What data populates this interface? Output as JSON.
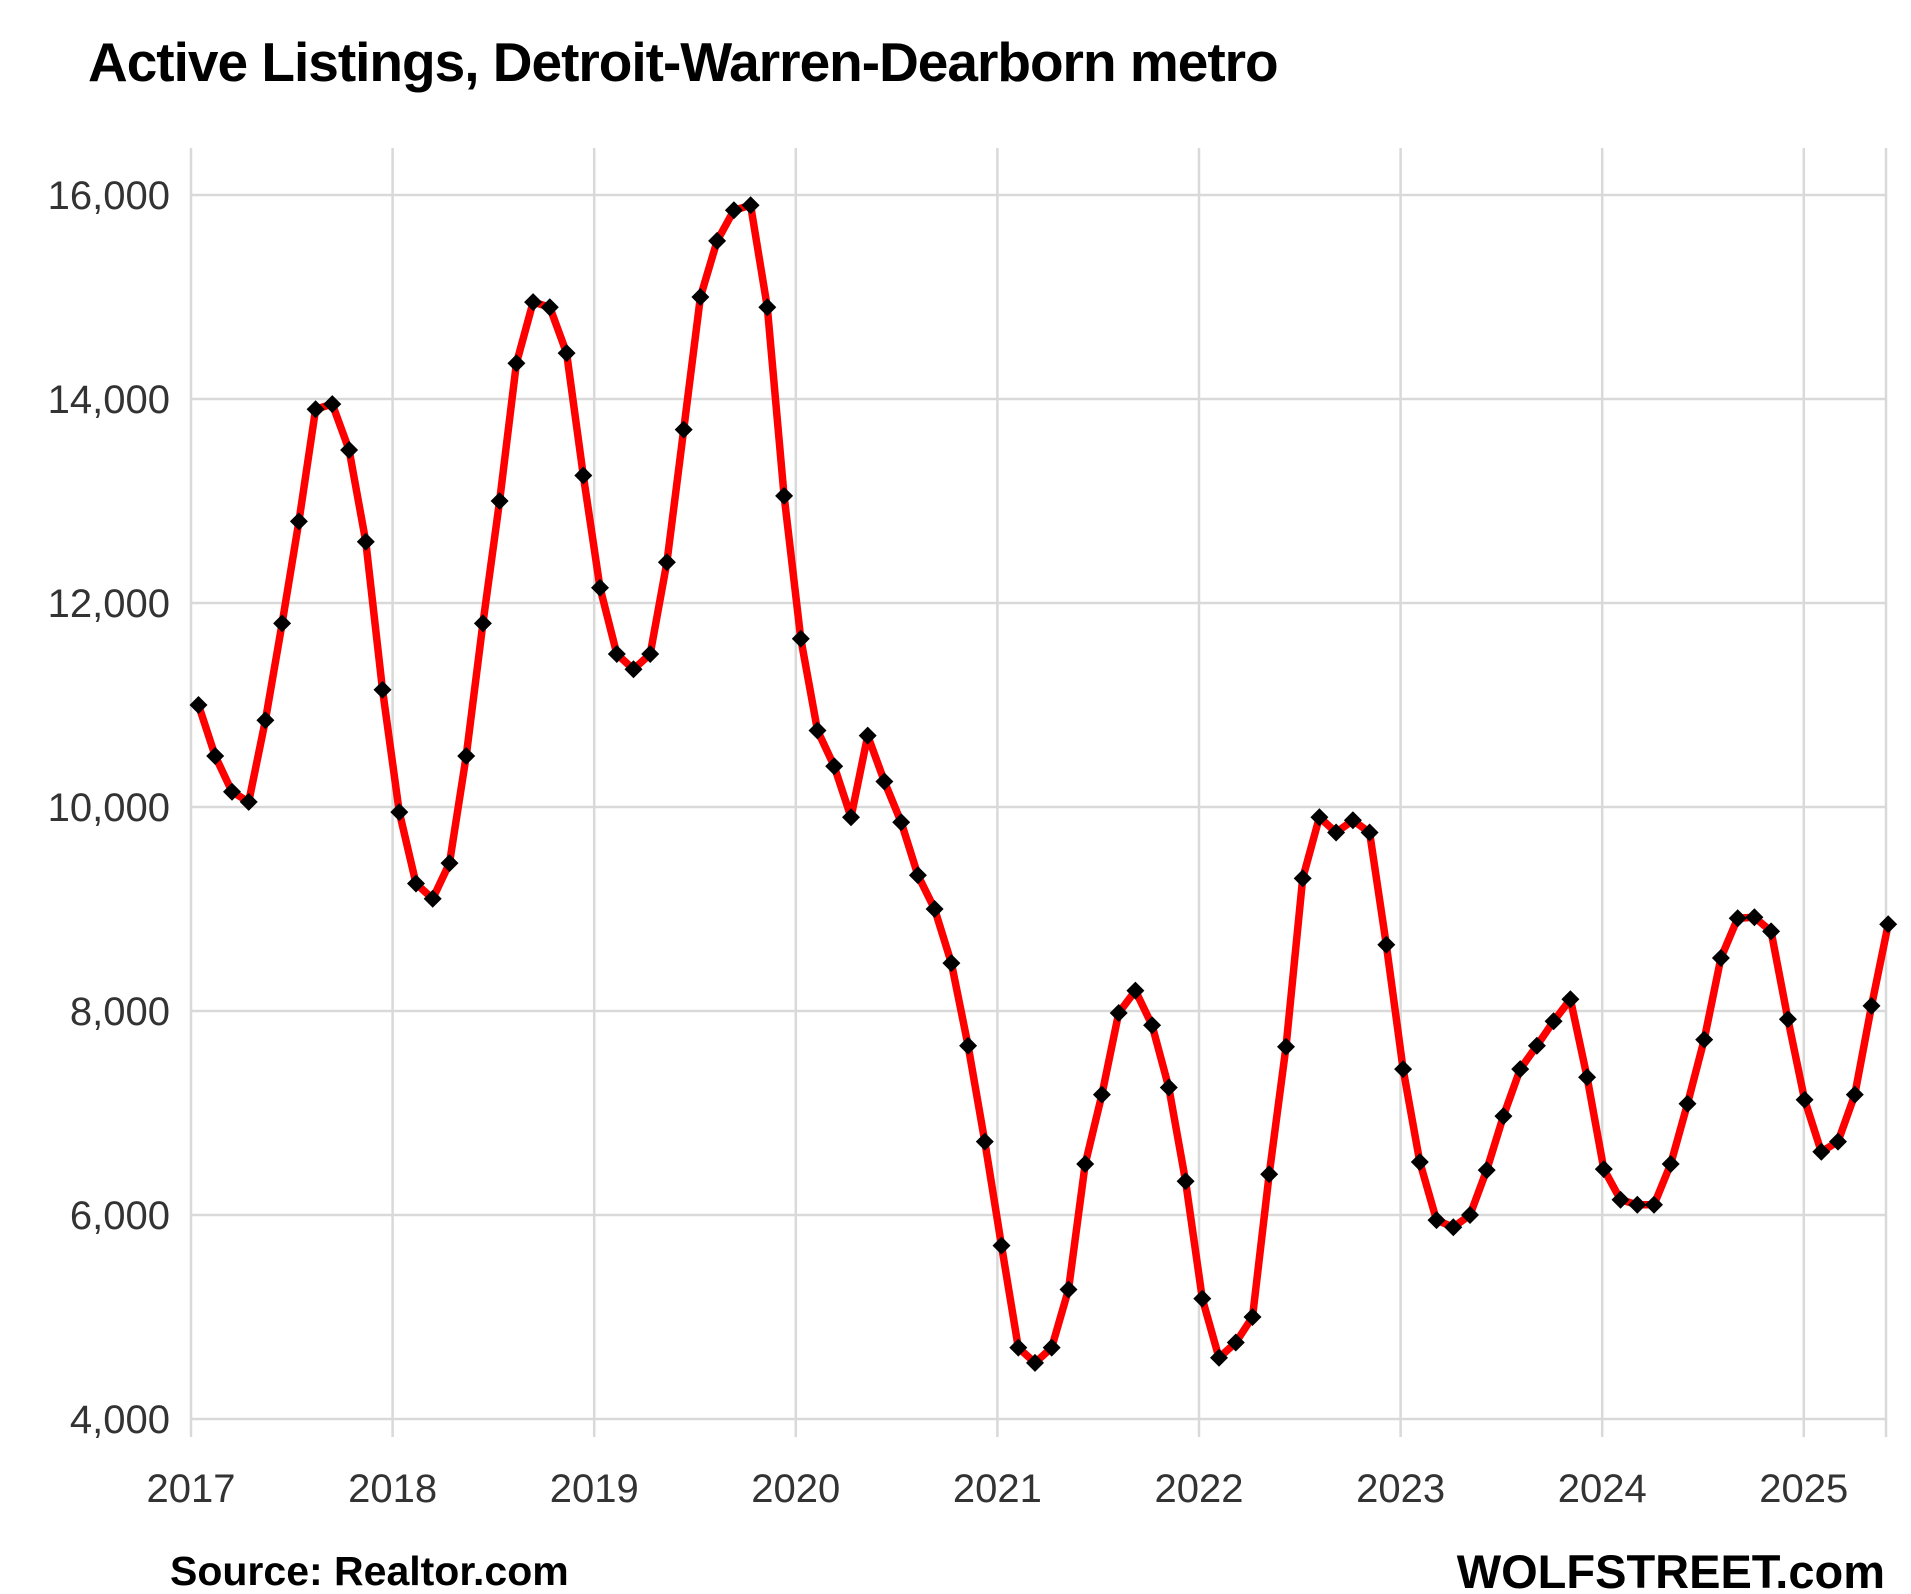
{
  "page": {
    "source_label": "Source: Realtor.com",
    "branding": "WOLFSTREET.com"
  },
  "chart_data": {
    "type": "line",
    "title": "Active Listings, Detroit-Warren-Dearborn metro",
    "subtitle": "",
    "x_unit": "month",
    "start": "2017-01",
    "end": "2025-06",
    "frequency": "monthly",
    "legend_position": "none",
    "grid": true,
    "ylim": [
      4000,
      16000
    ],
    "y_tick_step": 2000,
    "y_ticks": [
      {
        "value": 16000,
        "label": "16,000"
      },
      {
        "value": 14000,
        "label": "14,000"
      },
      {
        "value": 12000,
        "label": "12,000"
      },
      {
        "value": 10000,
        "label": "10,000"
      },
      {
        "value": 8000,
        "label": "8,000"
      },
      {
        "value": 6000,
        "label": "6,000"
      },
      {
        "value": 4000,
        "label": "4,000"
      }
    ],
    "x_tick_labels": [
      "2017",
      "2018",
      "2019",
      "2020",
      "2021",
      "2022",
      "2023",
      "2024",
      "2025"
    ],
    "series": [
      {
        "name": "Active listings",
        "line_color": "#FE0000",
        "marker": "diamond",
        "marker_color": "#000000",
        "values_by_year": {
          "2017": [
            11000,
            10500,
            10150,
            10050,
            10850,
            11800,
            12800,
            13900,
            13950,
            13500,
            12600,
            11150
          ],
          "2018": [
            9950,
            9250,
            9100,
            9450,
            10500,
            11800,
            13000,
            14350,
            14950,
            14900,
            14450,
            13250
          ],
          "2019": [
            12150,
            11500,
            11350,
            11500,
            12400,
            13700,
            15000,
            15550,
            15850,
            15900,
            14900,
            13050
          ],
          "2020": [
            11650,
            10750,
            10400,
            9900,
            10700,
            10250,
            9850,
            9330,
            9000,
            8470,
            7660,
            6720
          ],
          "2021": [
            5700,
            4700,
            4550,
            4700,
            5270,
            6500,
            7180,
            7980,
            8200,
            7860,
            7250,
            6330
          ],
          "2022": [
            5180,
            4600,
            4750,
            5000,
            6400,
            7650,
            9300,
            9900,
            9750,
            9870,
            9750,
            8650
          ],
          "2023": [
            7430,
            6520,
            5950,
            5880,
            6000,
            6440,
            6970,
            7430,
            7660,
            7900,
            8115,
            7350
          ],
          "2024": [
            6450,
            6150,
            6100,
            6100,
            6500,
            7090,
            7720,
            8520,
            8910,
            8920,
            8780,
            7920
          ],
          "2025": [
            7130,
            6620,
            6720,
            7180,
            8050,
            8850
          ]
        }
      }
    ],
    "source_label": "Source: Realtor.com",
    "branding": "WOLFSTREET.com"
  },
  "style": {
    "line_color": "#FE0000",
    "marker_color": "#000000",
    "grid_color": "#D9D9D9",
    "axis_label_color": "#333333",
    "text_color": "#000000",
    "background": "#FFFFFF"
  }
}
